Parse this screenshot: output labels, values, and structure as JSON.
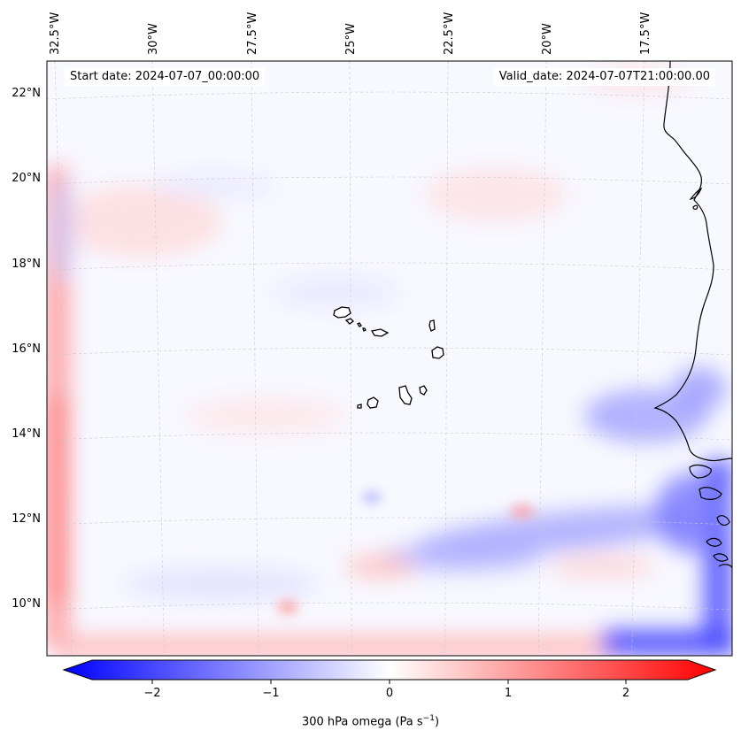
{
  "map": {
    "start_date": "Start date: 2024-07-07_00:00:00",
    "valid_date": "Valid_date: 2024-07-07T21:00:00.00",
    "lon_labels": [
      "32.5°W",
      "30°W",
      "27.5°W",
      "25°W",
      "22.5°W",
      "20°W",
      "17.5°W"
    ],
    "lat_labels": [
      "22°N",
      "20°N",
      "18°N",
      "16°N",
      "14°N",
      "12°N",
      "10°N"
    ],
    "colorbar": {
      "ticks": [
        "−2",
        "−1",
        "0",
        "1",
        "2"
      ],
      "label_main": "300 hPa omega (Pa s",
      "label_sup": "−1",
      "label_end": ")",
      "range": [
        -2.6,
        2.6
      ],
      "colors": {
        "negative": "#0000ff",
        "zero": "#ffffff",
        "positive": "#ff0000"
      }
    },
    "colormap": "bwr"
  }
}
